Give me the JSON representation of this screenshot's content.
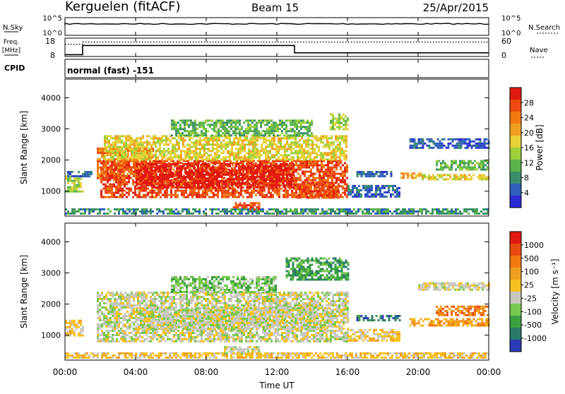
{
  "header": {
    "station": "Kerguelen (fitACF)",
    "beam": "Beam 15",
    "date": "25/Apr/2015"
  },
  "top_panels": {
    "nsky_label": "N.Sky",
    "nsky_ticks": [
      "10^5",
      "10^0"
    ],
    "nsearch_label": "N.Search",
    "nsearch_ticks": [
      "10^5",
      "10^0"
    ],
    "freq_label": "Freq.",
    "freq_unit": "[MHz]",
    "freq_ticks": [
      "18",
      "8"
    ],
    "nave_label": "Nave",
    "nave_ticks": [
      "60",
      "0"
    ],
    "cpid_label": "CPID",
    "cpid_value": "normal (fast) -151",
    "freq_series": {
      "x_hours": [
        0,
        1,
        1,
        13,
        13,
        24
      ],
      "mhz": [
        9,
        9,
        14,
        14,
        10,
        10
      ]
    },
    "nave_series": {
      "x_hours": [
        0,
        1,
        1,
        24
      ],
      "count": [
        40,
        40,
        47,
        47
      ]
    }
  },
  "x_axis": {
    "label": "Time UT",
    "ticks": [
      "00:00",
      "04:00",
      "08:00",
      "12:00",
      "16:00",
      "20:00",
      "00:00"
    ],
    "range_hours": [
      0,
      24
    ]
  },
  "chart_data": [
    {
      "type": "heatmap",
      "name": "power",
      "ylabel": "Slant Range [km]",
      "yticks": [
        1000,
        2000,
        3000,
        4000
      ],
      "ylim": [
        200,
        4600
      ],
      "colorbar": {
        "label": "Power [dB]",
        "ticks": [
          "28",
          "24",
          "20",
          "16",
          "12",
          "8",
          "4"
        ],
        "colors": [
          "#2b2bd6",
          "#2f5fb8",
          "#3a8f6a",
          "#5cb34a",
          "#9ccf3a",
          "#e6d23a",
          "#f0a020",
          "#f07a10",
          "#ec4a10",
          "#e01a10"
        ]
      },
      "regions": [
        {
          "t": [
            0.0,
            1.0
          ],
          "r": [
            1000,
            1500
          ],
          "level": 4
        },
        {
          "t": [
            0.0,
            1.5
          ],
          "r": [
            1500,
            1650
          ],
          "level": 1
        },
        {
          "t": [
            1.8,
            5.0
          ],
          "r": [
            1400,
            2400
          ],
          "level": 7
        },
        {
          "t": [
            2.0,
            16.0
          ],
          "r": [
            800,
            2000
          ],
          "level": 8
        },
        {
          "t": [
            4.0,
            13.0
          ],
          "r": [
            1100,
            1900
          ],
          "level": 9
        },
        {
          "t": [
            2.2,
            16.0
          ],
          "r": [
            2000,
            2800
          ],
          "level": 5
        },
        {
          "t": [
            6.0,
            14.0
          ],
          "r": [
            2800,
            3300
          ],
          "level": 3
        },
        {
          "t": [
            9.5,
            11.0
          ],
          "r": [
            400,
            650
          ],
          "level": 8
        },
        {
          "t": [
            13.0,
            15.5
          ],
          "r": [
            800,
            1300
          ],
          "level": 8
        },
        {
          "t": [
            15.0,
            16.0
          ],
          "r": [
            3000,
            3500
          ],
          "level": 4
        },
        {
          "t": [
            16.0,
            19.0
          ],
          "r": [
            800,
            1200
          ],
          "level": 1
        },
        {
          "t": [
            16.5,
            18.5
          ],
          "r": [
            1500,
            1650
          ],
          "level": 1
        },
        {
          "t": [
            19.0,
            20.2
          ],
          "r": [
            1400,
            1600
          ],
          "level": 6
        },
        {
          "t": [
            20.2,
            24.0
          ],
          "r": [
            1350,
            1550
          ],
          "level": 5
        },
        {
          "t": [
            21.0,
            24.0
          ],
          "r": [
            1700,
            2000
          ],
          "level": 3
        },
        {
          "t": [
            19.5,
            24.0
          ],
          "r": [
            2400,
            2700
          ],
          "level": 1
        },
        {
          "t": [
            0.0,
            24.0
          ],
          "r": [
            250,
            450
          ],
          "level": 2
        }
      ]
    },
    {
      "type": "heatmap",
      "name": "velocity",
      "ylabel": "Slant Range [km]",
      "yticks": [
        1000,
        2000,
        3000,
        4000
      ],
      "ylim": [
        200,
        4600
      ],
      "colorbar": {
        "label": "Velocity [m s⁻¹]",
        "ticks": [
          "1000",
          "500",
          "100",
          "25",
          "-25",
          "-100",
          "-500",
          "-1000"
        ],
        "colors": [
          "#2b3cb8",
          "#2a7a6a",
          "#3aa040",
          "#78c850",
          "#c8c8c0",
          "#f8c020",
          "#f0a020",
          "#f07a10",
          "#e84a10",
          "#e01a10"
        ]
      },
      "regions": [
        {
          "t": [
            0.0,
            1.0
          ],
          "r": [
            1000,
            1500
          ],
          "level": 5
        },
        {
          "t": [
            1.8,
            16.0
          ],
          "r": [
            800,
            2400
          ],
          "level": 4
        },
        {
          "t": [
            4.0,
            15.0
          ],
          "r": [
            1200,
            1900
          ],
          "level": 4
        },
        {
          "t": [
            6.0,
            12.0
          ],
          "r": [
            2400,
            2900
          ],
          "level": 3
        },
        {
          "t": [
            9.0,
            11.0
          ],
          "r": [
            400,
            650
          ],
          "level": 4
        },
        {
          "t": [
            12.5,
            16.0
          ],
          "r": [
            2800,
            3500
          ],
          "level": 2
        },
        {
          "t": [
            16.0,
            19.0
          ],
          "r": [
            800,
            1200
          ],
          "level": 5
        },
        {
          "t": [
            16.5,
            19.0
          ],
          "r": [
            1500,
            1650
          ],
          "level": 1
        },
        {
          "t": [
            19.5,
            24.0
          ],
          "r": [
            1300,
            1550
          ],
          "level": 6
        },
        {
          "t": [
            21.0,
            24.0
          ],
          "r": [
            1650,
            1950
          ],
          "level": 7
        },
        {
          "t": [
            20.0,
            24.0
          ],
          "r": [
            2450,
            2700
          ],
          "level": 4
        },
        {
          "t": [
            0.0,
            24.0
          ],
          "r": [
            250,
            450
          ],
          "level": 5
        }
      ]
    }
  ]
}
